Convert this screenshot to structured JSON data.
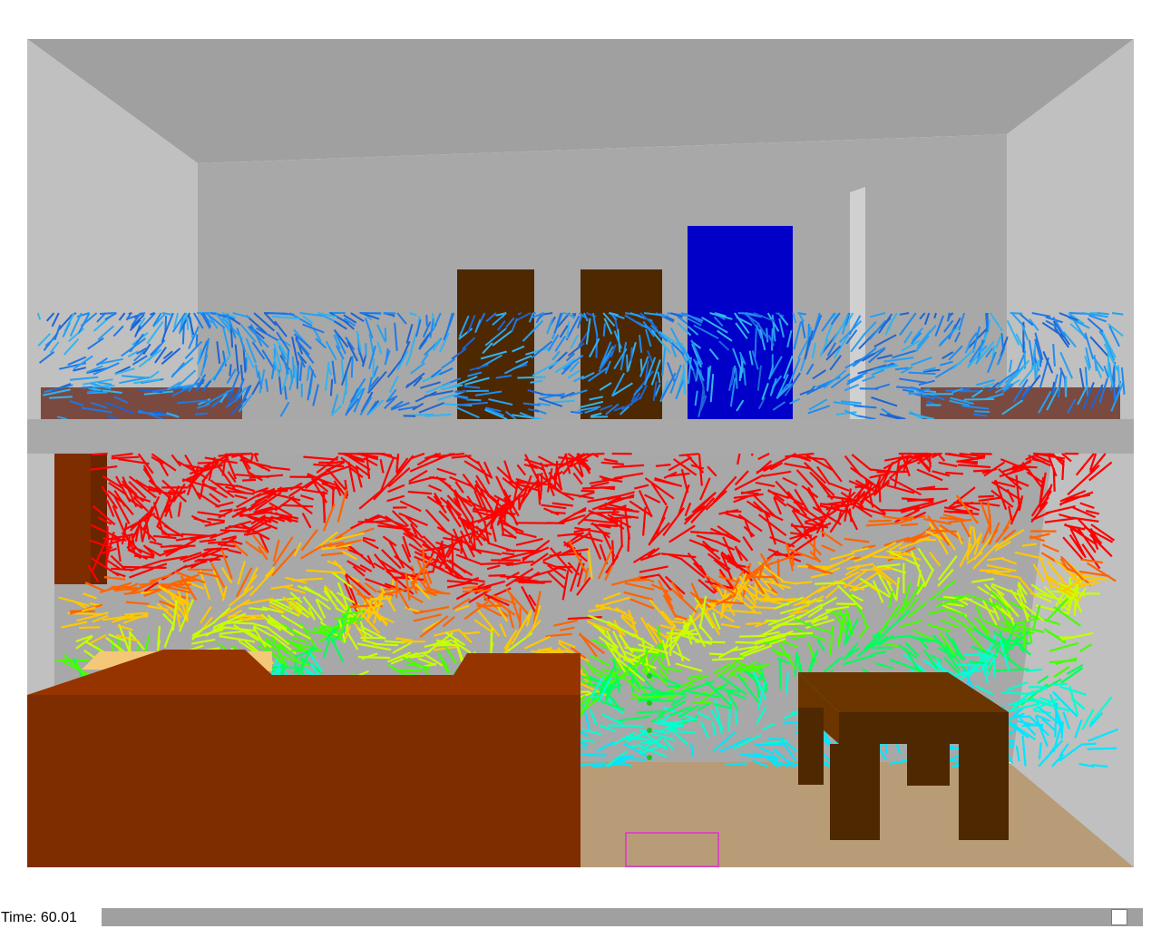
{
  "scene": {
    "colors": {
      "ceiling": "#a0a0a0",
      "side_wall": "#c0c0c0",
      "back_wall": "#a8a8a8",
      "slab": "#a9a9a9",
      "floor": "#b89c78",
      "furniture_dark": "#4e2800",
      "furniture_mid": "#6b3500",
      "sofa": "#7e2d00",
      "sofa_top": "#963400",
      "cushion": "#f5c878",
      "blue_box": "#0000c8",
      "bed_upper": "#7a4a40",
      "vent_outline": "#e030d0",
      "sensor": "#1bc81b"
    },
    "flow_field": {
      "upper_floor_colors": [
        "#1e78e6",
        "#1e8cf0",
        "#28a0f0",
        "#1e64d2",
        "#32b4f0"
      ],
      "lower_floor_gradient": [
        "#ff0000",
        "#ff6400",
        "#ffc800",
        "#c8ff00",
        "#46ff00",
        "#00ff5a",
        "#00ffd2",
        "#00e6ff"
      ]
    }
  },
  "status": {
    "time_label": "Time: 60.01",
    "time_progress": 0.985
  }
}
